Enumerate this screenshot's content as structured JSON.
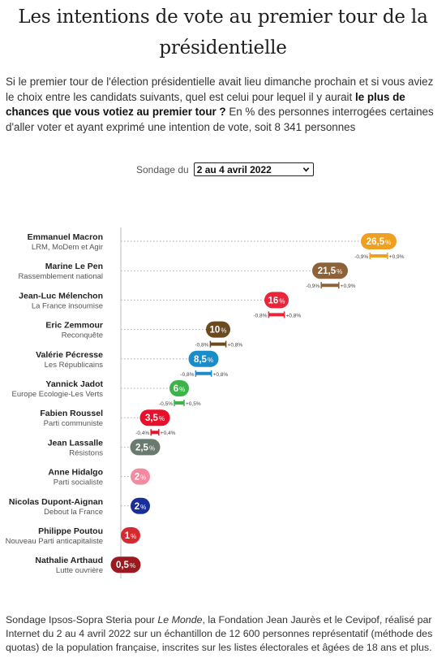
{
  "title": "Les intentions de vote au premier tour de la présidentielle",
  "intro": {
    "part1": "Si le premier tour de l'élection présidentielle avait lieu dimanche prochain et si vous aviez le choix entre les candidats suivants, quel est celui pour lequel il y aurait ",
    "bold": "le plus de chances que vous votiez au premier tour ?",
    "part2": " En % des personnes interrogées certaines d'aller voter et ayant exprimé une intention de vote, soit 8 341 personnes"
  },
  "filter": {
    "label": "Sondage du",
    "selected": "2 au 4 avril 2022"
  },
  "chart_data": {
    "type": "dot",
    "unit": "%",
    "xlim": [
      0,
      27.5
    ],
    "candidates": [
      {
        "name": "Emmanuel Macron",
        "party": "LRM, MoDem et Agir",
        "value": 26.5,
        "label": "26,5",
        "delta_minus": "-0,9%",
        "delta_plus": "+0,9%",
        "color": "#f0a020"
      },
      {
        "name": "Marine Le Pen",
        "party": "Rassemblement national",
        "value": 21.5,
        "label": "21,5",
        "delta_minus": "-0,9%",
        "delta_plus": "+0,9%",
        "color": "#8c6239"
      },
      {
        "name": "Jean-Luc Mélenchon",
        "party": "La France insoumise",
        "value": 16,
        "label": "16",
        "delta_minus": "-0,8%",
        "delta_plus": "+0,8%",
        "color": "#e8253a"
      },
      {
        "name": "Eric Zemmour",
        "party": "Reconquête",
        "value": 10,
        "label": "10",
        "delta_minus": "-0,8%",
        "delta_plus": "+0,8%",
        "color": "#6b4a20"
      },
      {
        "name": "Valérie Pécresse",
        "party": "Les Républicains",
        "value": 8.5,
        "label": "8,5",
        "delta_minus": "-0,8%",
        "delta_plus": "+0,8%",
        "color": "#1a8cc8"
      },
      {
        "name": "Yannick Jadot",
        "party": "Europe Ecologie-Les Verts",
        "value": 6,
        "label": "6",
        "delta_minus": "-0,5%",
        "delta_plus": "+0,5%",
        "color": "#3cb44a"
      },
      {
        "name": "Fabien Roussel",
        "party": "Parti communiste",
        "value": 3.5,
        "label": "3,5",
        "delta_minus": "-0,4%",
        "delta_plus": "+0,4%",
        "color": "#e8102a"
      },
      {
        "name": "Jean Lassalle",
        "party": "Résistons",
        "value": 2.5,
        "label": "2,5",
        "delta_minus": "",
        "delta_plus": "",
        "color": "#6a7a70"
      },
      {
        "name": "Anne Hidalgo",
        "party": "Parti socialiste",
        "value": 2,
        "label": "2",
        "delta_minus": "",
        "delta_plus": "",
        "color": "#f48aa0"
      },
      {
        "name": "Nicolas Dupont-Aignan",
        "party": "Debout la France",
        "value": 2,
        "label": "2",
        "delta_minus": "",
        "delta_plus": "",
        "color": "#1a2e9a"
      },
      {
        "name": "Philippe Poutou",
        "party": "Nouveau Parti anticapitaliste",
        "value": 1,
        "label": "1",
        "delta_minus": "",
        "delta_plus": "",
        "color": "#d42a30"
      },
      {
        "name": "Nathalie Arthaud",
        "party": "Lutte ouvrière",
        "value": 0.5,
        "label": "0,5",
        "delta_minus": "",
        "delta_plus": "",
        "color": "#9a1a20"
      }
    ]
  },
  "footnote": {
    "part1": "Sondage Ipsos-Sopra Steria pour ",
    "italic": "Le Monde",
    "part2": ", la Fondation Jean Jaurès et le Cevipof, réalisé par Internet du 2 au 4 avril 2022 sur un échantillon de 12 600 personnes représentatif (méthode des quotas) de la population française, inscrites sur les listes électorales et âgées de 18 ans et plus."
  }
}
